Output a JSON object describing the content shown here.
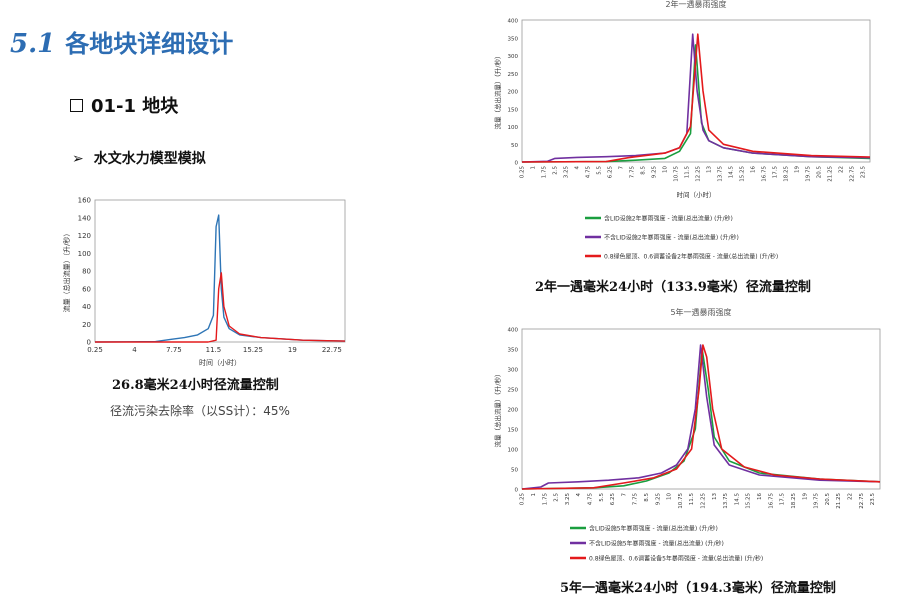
{
  "section": {
    "number": "5.1",
    "title": "各地块详细设计"
  },
  "block": {
    "title": "01-1 地块"
  },
  "bullet": {
    "text": "水文水力模型模拟"
  },
  "chart1_caption": "26.8毫米24小时径流量控制",
  "chart1_note": "径流污染去除率（以SS计）：45%",
  "chart2_caption": "2年一遇毫米24小时（133.9毫米）径流量控制",
  "chart3_caption": "5年一遇毫米24小时（194.3毫米）径流量控制",
  "colors": {
    "blue": "#2e75b6",
    "red": "#e41a1c",
    "green": "#1a9e3f",
    "purple": "#7030a0",
    "title": "#2d6db3"
  },
  "chart_data": [
    {
      "type": "line",
      "title": "",
      "xlabel": "时间（小时）",
      "ylabel": "流量（总出流量）（升/秒）",
      "ylim": [
        0,
        160
      ],
      "yticks": [
        0,
        20,
        40,
        60,
        80,
        100,
        120,
        140,
        160
      ],
      "xlim": [
        0.25,
        24
      ],
      "xticks": [
        "0.25",
        "4",
        "7.75",
        "11.5",
        "15.25",
        "19",
        "22.75"
      ],
      "grid": false,
      "series": [
        {
          "color": "#2e75b6",
          "x": [
            0.25,
            6,
            7.5,
            8.75,
            10,
            11,
            11.5,
            11.75,
            12,
            12.25,
            12.5,
            13,
            14,
            16,
            20,
            24
          ],
          "y": [
            0,
            0.5,
            3,
            5,
            8,
            15,
            30,
            130,
            143,
            60,
            28,
            15,
            8,
            5,
            2,
            1
          ]
        },
        {
          "color": "#e41a1c",
          "x": [
            0.25,
            11,
            11.75,
            12,
            12.25,
            12.5,
            13,
            14,
            16,
            20,
            24
          ],
          "y": [
            0,
            0,
            2,
            60,
            78,
            40,
            18,
            9,
            5,
            2,
            1
          ]
        }
      ]
    },
    {
      "type": "line",
      "title": "2年一遇暴雨强度",
      "xlabel": "时间（小时）",
      "ylabel": "流量（总出流量）（升/秒）",
      "ylim": [
        0,
        400
      ],
      "yticks": [
        0,
        50,
        100,
        150,
        200,
        250,
        300,
        350,
        400
      ],
      "xlim": [
        0.25,
        24
      ],
      "xticks": [
        "0.25",
        "1",
        "1.75",
        "2.5",
        "3.25",
        "4",
        "4.75",
        "5.5",
        "6.25",
        "7",
        "7.75",
        "8.5",
        "9.25",
        "10",
        "10.75",
        "11.5",
        "12.25",
        "13",
        "13.75",
        "14.5",
        "15.25",
        "16",
        "16.75",
        "17.5",
        "18.25",
        "19",
        "19.75",
        "20.5",
        "21.25",
        "22",
        "22.75",
        "23.5"
      ],
      "legend_position": "bottom",
      "grid": false,
      "series": [
        {
          "name": "含LID设施2年暴雨强度 - 流量(总出流量) (升/秒)",
          "color": "#1a9e3f",
          "x": [
            0.25,
            6,
            8,
            10,
            11,
            11.75,
            12.1,
            12.5,
            13,
            14,
            16,
            20,
            24
          ],
          "y": [
            0,
            1,
            5,
            10,
            30,
            80,
            330,
            110,
            60,
            40,
            25,
            15,
            10
          ]
        },
        {
          "name": "不含LID设施2年暴雨强度 - 流量(总出流量) (升/秒)",
          "color": "#7030a0",
          "x": [
            0.25,
            2,
            2.5,
            4,
            6,
            8,
            10,
            11,
            11.5,
            11.9,
            12.2,
            12.6,
            13,
            14,
            16,
            20,
            24
          ],
          "y": [
            0,
            2,
            10,
            13,
            15,
            18,
            25,
            40,
            80,
            360,
            200,
            90,
            60,
            40,
            25,
            15,
            12
          ]
        },
        {
          "name": "0.8绿色屋顶、0.6调蓄设备2年暴雨强度 - 流量(总出流量) (升/秒)",
          "color": "#e41a1c",
          "x": [
            0.25,
            6,
            7.5,
            9,
            10,
            11,
            11.75,
            12.25,
            12.6,
            13,
            14,
            16,
            20,
            24
          ],
          "y": [
            0,
            1,
            12,
            20,
            25,
            40,
            100,
            360,
            200,
            90,
            50,
            30,
            18,
            14
          ]
        }
      ]
    },
    {
      "type": "line",
      "title": "5年一遇暴雨强度",
      "xlabel": "",
      "ylabel": "流量（总出流量）（升/秒）",
      "ylim": [
        0,
        400
      ],
      "yticks": [
        0,
        50,
        100,
        150,
        200,
        250,
        300,
        350,
        400
      ],
      "xlim": [
        0.25,
        24
      ],
      "xticks": [
        "0.25",
        "1",
        "1.75",
        "2.5",
        "3.25",
        "4",
        "4.75",
        "5.5",
        "6.25",
        "7",
        "7.75",
        "8.5",
        "9.25",
        "10",
        "10.75",
        "11.5",
        "12.25",
        "13",
        "13.75",
        "14.5",
        "15.25",
        "16",
        "16.75",
        "17.5",
        "18.25",
        "19",
        "19.75",
        "20.5",
        "21.25",
        "22",
        "22.75",
        "23.5"
      ],
      "legend_position": "bottom",
      "grid": false,
      "series": [
        {
          "name": "含LID设施5年暴雨强度 - 流量(总出流量) (升/秒)",
          "color": "#1a9e3f",
          "x": [
            0.25,
            5,
            7,
            8.5,
            10,
            11,
            11.75,
            12.2,
            12.6,
            13,
            14,
            16,
            20,
            24
          ],
          "y": [
            0,
            3,
            8,
            20,
            40,
            70,
            150,
            350,
            250,
            130,
            70,
            40,
            25,
            18
          ]
        },
        {
          "name": "不含LID设施5年暴雨强度 - 流量(总出流量) (升/秒)",
          "color": "#7030a0",
          "x": [
            0.25,
            1.5,
            2,
            4,
            6,
            8,
            9.5,
            10.5,
            11.25,
            11.75,
            12.1,
            12.5,
            13,
            14,
            16,
            20,
            24
          ],
          "y": [
            0,
            5,
            15,
            18,
            22,
            28,
            40,
            60,
            100,
            200,
            360,
            230,
            110,
            60,
            35,
            22,
            18
          ]
        },
        {
          "name": "0.8绿色屋顶、0.6调蓄设备5年暴雨强度 - 流量(总出流量) (升/秒)",
          "color": "#e41a1c",
          "x": [
            0.25,
            5,
            7,
            9,
            10.5,
            11.5,
            12,
            12.25,
            12.5,
            12.9,
            13.5,
            15,
            17,
            20,
            24
          ],
          "y": [
            0,
            3,
            15,
            28,
            50,
            100,
            250,
            360,
            330,
            200,
            100,
            55,
            35,
            25,
            18
          ]
        }
      ]
    }
  ]
}
